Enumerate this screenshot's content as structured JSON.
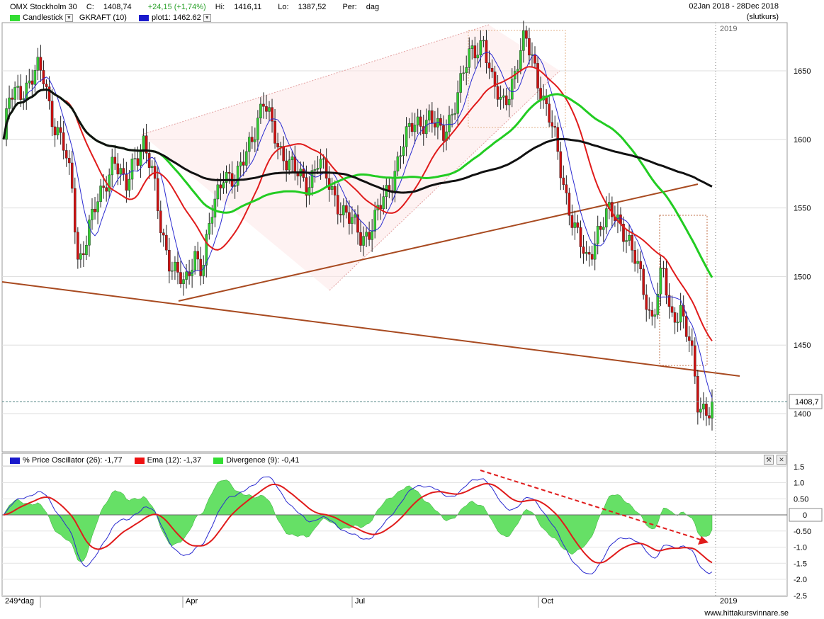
{
  "header": {
    "instrument": "OMX Stockholm 30",
    "close_label": "C:",
    "close_value": "1408,74",
    "change": "+24,15 (+1,74%)",
    "high_label": "Hi:",
    "high_value": "1416,11",
    "low_label": "Lo:",
    "low_value": "1387,52",
    "period_label": "Per:",
    "period_value": "dag",
    "date_range": "02Jan 2018 - 28Dec 2018",
    "price_type": "(slutkurs)"
  },
  "legend": [
    {
      "label": "Candlestick",
      "color": "#33dd33",
      "dropdown": true
    },
    {
      "label": "GKRAFT (10)",
      "color": "",
      "dropdown": false
    },
    {
      "label": "plot1: 1462.62",
      "color": "#1a1acc",
      "dropdown": true
    }
  ],
  "oscillator_legend": [
    {
      "label": "% Price Oscillator (26): -1,77",
      "color": "#1a1acc"
    },
    {
      "label": "Ema (12): -1,37",
      "color": "#ee1111"
    },
    {
      "label": "Divergence (9): -0,41",
      "color": "#33dd33"
    }
  ],
  "footer": {
    "period_count": "249*dag",
    "months": [
      "Apr",
      "Jul",
      "Oct",
      "2019"
    ],
    "brand": "www.hittakursvinnare.se"
  },
  "icons": [
    "wrench-icon",
    "close-icon",
    "dropdown-arrow-icon"
  ],
  "chart_data": [
    {
      "type": "candlestick",
      "title": "OMX Stockholm 30",
      "ylim": [
        1375,
        1685
      ],
      "y_ticks": [
        "1650",
        "1600",
        "1550",
        "1500",
        "1450",
        "1400"
      ],
      "x_ticks": [
        "Apr",
        "Jul",
        "Oct",
        "2019"
      ],
      "last_price_label": "1408,7",
      "year_marker": "2019",
      "series": [
        {
          "name": "Close",
          "points": [
            [
              "2018-01-02",
              1600
            ],
            [
              "2018-01-05",
              1628
            ],
            [
              "2018-01-12",
              1638
            ],
            [
              "2018-01-19",
              1650
            ],
            [
              "2018-01-23",
              1642
            ],
            [
              "2018-01-26",
              1620
            ],
            [
              "2018-02-01",
              1598
            ],
            [
              "2018-02-06",
              1560
            ],
            [
              "2018-02-09",
              1510
            ],
            [
              "2018-02-14",
              1535
            ],
            [
              "2018-02-21",
              1560
            ],
            [
              "2018-02-27",
              1590
            ],
            [
              "2018-03-05",
              1560
            ],
            [
              "2018-03-09",
              1585
            ],
            [
              "2018-03-14",
              1600
            ],
            [
              "2018-03-19",
              1570
            ],
            [
              "2018-03-23",
              1535
            ],
            [
              "2018-03-28",
              1510
            ],
            [
              "2018-04-04",
              1490
            ],
            [
              "2018-04-09",
              1520
            ],
            [
              "2018-04-13",
              1505
            ],
            [
              "2018-04-18",
              1545
            ],
            [
              "2018-04-24",
              1580
            ],
            [
              "2018-04-30",
              1565
            ],
            [
              "2018-05-07",
              1600
            ],
            [
              "2018-05-14",
              1625
            ],
            [
              "2018-05-18",
              1610
            ],
            [
              "2018-05-24",
              1590
            ],
            [
              "2018-05-30",
              1575
            ],
            [
              "2018-06-05",
              1568
            ],
            [
              "2018-06-11",
              1585
            ],
            [
              "2018-06-15",
              1570
            ],
            [
              "2018-06-21",
              1555
            ],
            [
              "2018-06-27",
              1540
            ],
            [
              "2018-07-03",
              1528
            ],
            [
              "2018-07-09",
              1540
            ],
            [
              "2018-07-16",
              1560
            ],
            [
              "2018-07-23",
              1595
            ],
            [
              "2018-07-30",
              1610
            ],
            [
              "2018-08-06",
              1618
            ],
            [
              "2018-08-13",
              1600
            ],
            [
              "2018-08-20",
              1632
            ],
            [
              "2018-08-27",
              1660
            ],
            [
              "2018-09-03",
              1675
            ],
            [
              "2018-09-07",
              1640
            ],
            [
              "2018-09-12",
              1625
            ],
            [
              "2018-09-18",
              1645
            ],
            [
              "2018-09-24",
              1672
            ],
            [
              "2018-09-28",
              1660
            ],
            [
              "2018-10-04",
              1625
            ],
            [
              "2018-10-09",
              1600
            ],
            [
              "2018-10-15",
              1560
            ],
            [
              "2018-10-19",
              1535
            ],
            [
              "2018-10-25",
              1510
            ],
            [
              "2018-10-31",
              1535
            ],
            [
              "2018-11-06",
              1545
            ],
            [
              "2018-11-12",
              1540
            ],
            [
              "2018-11-16",
              1525
            ],
            [
              "2018-11-21",
              1500
            ],
            [
              "2018-11-27",
              1470
            ],
            [
              "2018-12-03",
              1505
            ],
            [
              "2018-12-07",
              1465
            ],
            [
              "2018-12-12",
              1480
            ],
            [
              "2018-12-17",
              1450
            ],
            [
              "2018-12-21",
              1400
            ],
            [
              "2018-12-28",
              1408.74
            ]
          ]
        },
        {
          "name": "plot1",
          "value": "1462.62"
        }
      ]
    },
    {
      "type": "line",
      "title": "% Price Oscillator (26)",
      "ylim": [
        -2.5,
        1.5
      ],
      "y_ticks": [
        "1.5",
        "1.0",
        "0.50",
        "0",
        "-0.50",
        "-1.0",
        "-1.5",
        "-2.0",
        "-2.5"
      ],
      "series": [
        {
          "name": "% Price Oscillator (26)",
          "last": "-1,77"
        },
        {
          "name": "Ema (12)",
          "last": "-1,37"
        },
        {
          "name": "Divergence (9)",
          "last": "-0,41"
        }
      ]
    }
  ]
}
